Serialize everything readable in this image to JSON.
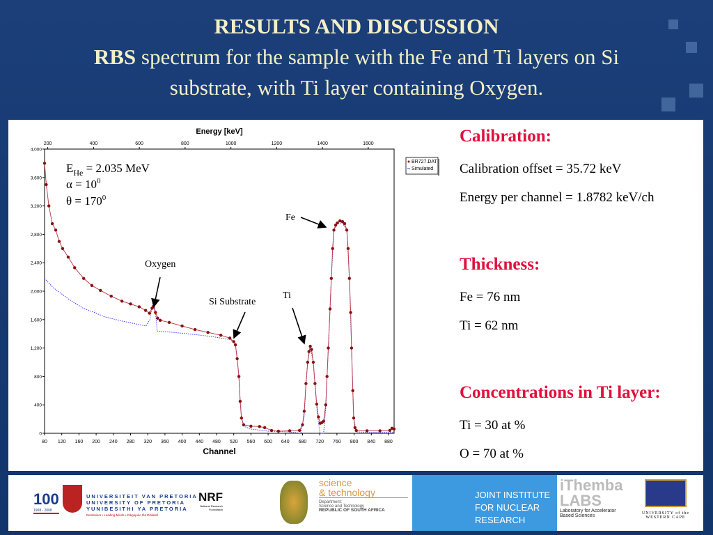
{
  "title": {
    "line1": "RESULTS AND DISCUSSION",
    "line2_bold": "RBS",
    "line2_rest": " spectrum for the sample with the Fe and Ti layers on Si",
    "line3": "substrate, with Ti layer containing Oxygen."
  },
  "right_panel": {
    "calibration": {
      "heading": "Calibration:",
      "offset": "Calibration offset = 35.72 keV",
      "energy_per_channel": "Energy per channel = 1.8782 keV/ch"
    },
    "thickness": {
      "heading": "Thickness:",
      "fe": "Fe = 76 nm",
      "ti": "Ti = 62 nm"
    },
    "concentrations": {
      "heading": "Concentrations in Ti layer:",
      "ti": "Ti = 30 at %",
      "o": "O = 70 at %"
    }
  },
  "colors": {
    "heading": "#e0103c",
    "measured": "#8b1010",
    "simulated": "#3a3aff",
    "title": "#f4efc6"
  },
  "chart_data": {
    "type": "scatter",
    "xlabel": "Channel",
    "x2label": "Energy [keV]",
    "ylabel": "",
    "xlim": [
      80,
      893
    ],
    "ylim": [
      0,
      4000
    ],
    "xticks": [
      80,
      120,
      160,
      200,
      240,
      280,
      320,
      360,
      400,
      440,
      480,
      520,
      560,
      600,
      640,
      680,
      720,
      760,
      800,
      840,
      880
    ],
    "x2ticks": [
      200,
      400,
      600,
      800,
      1000,
      1200,
      1400,
      1600
    ],
    "yticks": [
      0,
      400,
      800,
      1200,
      1600,
      2000,
      2400,
      2800,
      3200,
      3600,
      4000
    ],
    "ytick_labels": [
      "0",
      "400",
      "800",
      "1,200",
      "1,600",
      "2,000",
      "2,400",
      "2,800",
      "3,200",
      "3,600",
      "4,000"
    ],
    "legend": {
      "position": "top-right",
      "entries": [
        "BR727.DAT",
        "Simulated"
      ]
    },
    "annotations": {
      "beam": "E",
      "beam_sub": "He",
      "beam_rest": " = 2.035 MeV",
      "alpha": "α = 10",
      "alpha_sup": "0",
      "theta": "θ = 170",
      "theta_sup": "0",
      "fe": "Fe",
      "oxygen": "Oxygen",
      "si": "Si Substrate",
      "ti": "Ti"
    },
    "series": [
      {
        "name": "BR727.DAT",
        "points": [
          [
            80,
            3800
          ],
          [
            84,
            3500
          ],
          [
            90,
            3200
          ],
          [
            98,
            2950
          ],
          [
            106,
            2860
          ],
          [
            114,
            2700
          ],
          [
            122,
            2600
          ],
          [
            135,
            2480
          ],
          [
            150,
            2330
          ],
          [
            171,
            2180
          ],
          [
            190,
            2080
          ],
          [
            210,
            2010
          ],
          [
            235,
            1930
          ],
          [
            260,
            1860
          ],
          [
            280,
            1820
          ],
          [
            300,
            1780
          ],
          [
            315,
            1730
          ],
          [
            324,
            1690
          ],
          [
            330,
            1760
          ],
          [
            333,
            1780
          ],
          [
            338,
            1700
          ],
          [
            343,
            1620
          ],
          [
            349,
            1590
          ],
          [
            370,
            1560
          ],
          [
            400,
            1510
          ],
          [
            430,
            1460
          ],
          [
            460,
            1420
          ],
          [
            490,
            1380
          ],
          [
            511,
            1340
          ],
          [
            520,
            1290
          ],
          [
            524,
            1245
          ],
          [
            528,
            1050
          ],
          [
            532,
            800
          ],
          [
            535,
            450
          ],
          [
            538,
            215
          ],
          [
            543,
            120
          ],
          [
            560,
            100
          ],
          [
            580,
            95
          ],
          [
            592,
            80
          ],
          [
            608,
            40
          ],
          [
            624,
            30
          ],
          [
            650,
            35
          ],
          [
            673,
            40
          ],
          [
            680,
            120
          ],
          [
            684,
            310
          ],
          [
            688,
            700
          ],
          [
            692,
            1000
          ],
          [
            695,
            1150
          ],
          [
            698,
            1225
          ],
          [
            701,
            1180
          ],
          [
            705,
            1000
          ],
          [
            709,
            700
          ],
          [
            713,
            410
          ],
          [
            717,
            230
          ],
          [
            721,
            140
          ],
          [
            725,
            150
          ],
          [
            729,
            170
          ],
          [
            734,
            400
          ],
          [
            737,
            800
          ],
          [
            740,
            1200
          ],
          [
            744,
            1750
          ],
          [
            747,
            2180
          ],
          [
            750,
            2600
          ],
          [
            753,
            2860
          ],
          [
            757,
            2930
          ],
          [
            761,
            2960
          ],
          [
            767,
            2990
          ],
          [
            773,
            2980
          ],
          [
            778,
            2950
          ],
          [
            783,
            2860
          ],
          [
            786,
            2600
          ],
          [
            789,
            2180
          ],
          [
            792,
            1700
          ],
          [
            794,
            1200
          ],
          [
            797,
            600
          ],
          [
            799,
            215
          ],
          [
            802,
            80
          ],
          [
            805,
            40
          ],
          [
            830,
            35
          ],
          [
            860,
            35
          ],
          [
            883,
            40
          ],
          [
            888,
            70
          ],
          [
            893,
            60
          ]
        ]
      },
      {
        "name": "Simulated",
        "points": [
          [
            80,
            2180
          ],
          [
            100,
            2050
          ],
          [
            120,
            1960
          ],
          [
            138,
            1880
          ],
          [
            170,
            1760
          ],
          [
            200,
            1690
          ],
          [
            219,
            1640
          ],
          [
            260,
            1580
          ],
          [
            300,
            1530
          ],
          [
            316,
            1510
          ],
          [
            325,
            1600
          ],
          [
            333,
            1880
          ],
          [
            338,
            1700
          ],
          [
            342,
            1440
          ],
          [
            380,
            1420
          ],
          [
            430,
            1390
          ],
          [
            470,
            1360
          ],
          [
            511,
            1320
          ],
          [
            520,
            1280
          ],
          [
            524,
            1245
          ],
          [
            528,
            1050
          ],
          [
            532,
            800
          ],
          [
            535,
            450
          ],
          [
            538,
            215
          ],
          [
            543,
            100
          ],
          [
            560,
            60
          ],
          [
            600,
            30
          ],
          [
            650,
            20
          ],
          [
            676,
            0
          ],
          [
            684,
            250
          ],
          [
            688,
            680
          ],
          [
            692,
            1000
          ],
          [
            698,
            1225
          ],
          [
            705,
            1000
          ],
          [
            709,
            680
          ],
          [
            713,
            380
          ],
          [
            717,
            150
          ],
          [
            721,
            0
          ],
          [
            729,
            0
          ],
          [
            734,
            350
          ],
          [
            740,
            1200
          ],
          [
            747,
            2180
          ],
          [
            753,
            2860
          ],
          [
            761,
            2960
          ],
          [
            773,
            2960
          ],
          [
            783,
            2860
          ],
          [
            789,
            2180
          ],
          [
            794,
            1200
          ],
          [
            799,
            215
          ],
          [
            805,
            20
          ],
          [
            850,
            10
          ],
          [
            893,
            10
          ]
        ]
      }
    ]
  },
  "logos": {
    "up_100": "100",
    "up_years": "1908 - 2008",
    "up_1": "UNIVERSITEIT VAN PRETORIA",
    "up_2": "UNIVERSITY OF PRETORIA",
    "up_3": "YUNIBESITHI YA PRETORIA",
    "up_tag": "Denkleiers • Leading Minds • Dikgopolo tša Dihlalefi",
    "nrf": "NRF",
    "nrf_sub": "National Research Foundation",
    "dst_1": "science",
    "dst_2": "& technology",
    "dst_3": "Department:",
    "dst_4": "Science and Technology",
    "dst_5": "REPUBLIC OF SOUTH AFRICA",
    "jinr_1": "JOINT INSTITUTE",
    "jinr_2": "FOR NUCLEAR RESEARCH",
    "ithemba_1": "iThemba",
    "ithemba_2": "LABS",
    "ithemba_3": "Laboratory for Accelerator",
    "ithemba_4": "Based Sciences",
    "uwc_1": "UNIVERSITY of the",
    "uwc_2": "WESTERN CAPE"
  }
}
